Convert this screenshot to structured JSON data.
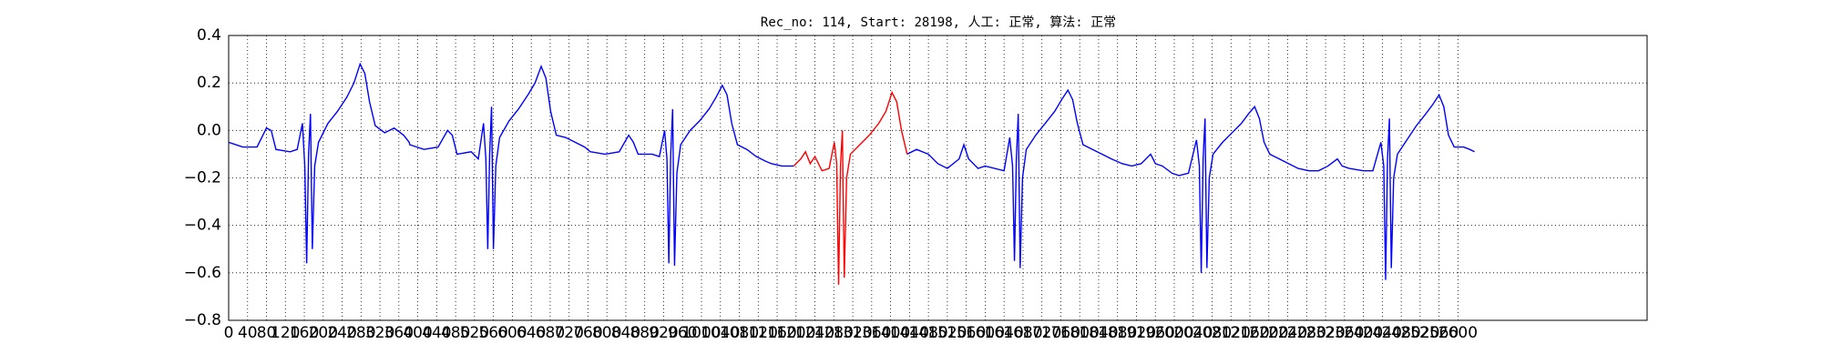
{
  "chart_data": {
    "type": "line",
    "title": "Rec_no: 114, Start: 28198, 人工: 正常, 算法: 正常",
    "xlim": [
      0,
      3000
    ],
    "ylim": [
      -0.8,
      0.4
    ],
    "xticks": [
      0,
      40,
      80,
      120,
      160,
      200,
      240,
      280,
      320,
      360,
      400,
      440,
      480,
      520,
      560,
      600,
      640,
      680,
      720,
      760,
      800,
      840,
      880,
      920,
      960,
      1000,
      1040,
      1080,
      1120,
      1160,
      1200,
      1240,
      1280,
      1320,
      1360,
      1400,
      1440,
      1480,
      1520,
      1560,
      1600,
      1640,
      1680,
      1720,
      1760,
      1800,
      1840,
      1880,
      1920,
      1960,
      2000,
      2040,
      2080,
      2120,
      2160,
      2200,
      2240,
      2280,
      2320,
      2360,
      2400,
      2440,
      2480,
      2520,
      2560,
      2600
    ],
    "yticks": [
      {
        "value": -0.8,
        "label": "−0.8"
      },
      {
        "value": -0.6,
        "label": "−0.6"
      },
      {
        "value": -0.4,
        "label": "−0.4"
      },
      {
        "value": -0.2,
        "label": "−0.2"
      },
      {
        "value": 0,
        "label": "0.0"
      },
      0.2,
      0.4
    ],
    "grid": true,
    "series": [
      {
        "color": "#0000ff",
        "x": [
          0,
          30,
          60,
          80,
          90,
          100,
          130,
          145,
          156,
          161,
          165,
          169,
          173,
          177,
          182,
          190,
          210,
          230,
          250,
          265,
          278,
          288,
          298,
          310,
          330,
          350,
          370,
          382,
          383,
          413,
          443,
          463,
          473,
          483,
          513,
          528,
          539,
          544,
          548,
          552,
          556,
          560,
          565,
          573,
          593,
          613,
          633,
          648,
          661,
          671,
          681,
          693,
          713,
          733,
          753,
          765,
          766,
          796,
          826,
          846,
          856,
          866,
          896,
          911,
          922,
          927,
          931,
          935,
          939,
          943,
          948,
          956,
          976,
          996,
          1016,
          1031,
          1044,
          1054,
          1064,
          1076,
          1096,
          1116,
          1136,
          1148,
          1170,
          1195,
          1315,
          1435,
          1455,
          1480,
          1500,
          1520,
          1545,
          1555,
          1565,
          1585,
          1600,
          1640,
          1652,
          1658,
          1662,
          1666,
          1670,
          1674,
          1679,
          1687,
          1707,
          1727,
          1747,
          1762,
          1775,
          1785,
          1795,
          1807,
          1827,
          1847,
          1867,
          1890,
          1910,
          1930,
          1950,
          1960,
          1975,
          1995,
          2010,
          2030,
          2047,
          2053,
          2057,
          2061,
          2065,
          2069,
          2074,
          2082,
          2102,
          2122,
          2142,
          2157,
          2170,
          2180,
          2190,
          2202,
          2222,
          2242,
          2262,
          2285,
          2305,
          2325,
          2345,
          2355,
          2370,
          2400,
          2420,
          2437,
          2443,
          2447,
          2451,
          2455,
          2459,
          2464,
          2472,
          2492,
          2512,
          2532,
          2547,
          2560,
          2570,
          2580,
          2592,
          2612,
          2625,
          2635
        ],
        "values": [
          -0.05,
          -0.07,
          -0.07,
          0.01,
          0.0,
          -0.08,
          -0.09,
          -0.08,
          0.03,
          -0.15,
          -0.56,
          -0.1,
          0.07,
          -0.5,
          -0.15,
          -0.05,
          0.03,
          0.08,
          0.14,
          0.2,
          0.28,
          0.24,
          0.12,
          0.02,
          -0.01,
          0.01,
          -0.02,
          -0.05,
          -0.06,
          -0.08,
          -0.07,
          0.0,
          -0.02,
          -0.1,
          -0.09,
          -0.12,
          0.03,
          -0.12,
          -0.5,
          -0.1,
          0.1,
          -0.5,
          -0.15,
          -0.03,
          0.04,
          0.09,
          0.15,
          0.2,
          0.27,
          0.22,
          0.08,
          -0.02,
          -0.03,
          -0.05,
          -0.07,
          -0.09,
          -0.09,
          -0.1,
          -0.09,
          -0.02,
          -0.05,
          -0.1,
          -0.1,
          -0.11,
          0.0,
          -0.12,
          -0.56,
          -0.1,
          0.09,
          -0.57,
          -0.18,
          -0.06,
          0.0,
          0.04,
          0.09,
          0.14,
          0.19,
          0.15,
          0.03,
          -0.06,
          -0.08,
          -0.11,
          -0.13,
          -0.14,
          -0.15,
          -0.15,
          null,
          -0.1,
          -0.08,
          -0.1,
          -0.14,
          -0.16,
          -0.12,
          -0.06,
          -0.12,
          -0.16,
          -0.15,
          -0.17,
          -0.03,
          -0.15,
          -0.55,
          -0.12,
          0.07,
          -0.58,
          -0.2,
          -0.08,
          -0.02,
          0.03,
          0.08,
          0.13,
          0.17,
          0.13,
          0.03,
          -0.06,
          -0.08,
          -0.1,
          -0.12,
          -0.14,
          -0.15,
          -0.14,
          -0.1,
          -0.14,
          -0.15,
          -0.18,
          -0.19,
          -0.18,
          -0.04,
          -0.15,
          -0.6,
          -0.12,
          0.05,
          -0.58,
          -0.2,
          -0.1,
          -0.05,
          -0.01,
          0.03,
          0.07,
          0.1,
          0.05,
          -0.05,
          -0.1,
          -0.12,
          -0.14,
          -0.16,
          -0.17,
          -0.17,
          -0.15,
          -0.12,
          -0.15,
          -0.16,
          -0.17,
          -0.17,
          -0.05,
          -0.15,
          -0.63,
          -0.12,
          0.05,
          -0.58,
          -0.2,
          -0.1,
          -0.04,
          0.02,
          0.07,
          0.11,
          0.15,
          0.1,
          -0.02,
          -0.07,
          -0.07,
          -0.08,
          -0.09
        ]
      },
      {
        "color": "#ff0000",
        "x": [
          1195,
          1210,
          1220,
          1230,
          1240,
          1255,
          1270,
          1281,
          1286,
          1290,
          1294,
          1298,
          1302,
          1307,
          1315,
          1335,
          1355,
          1375,
          1390,
          1403,
          1413,
          1423,
          1435
        ],
        "values": [
          -0.15,
          -0.12,
          -0.09,
          -0.14,
          -0.11,
          -0.17,
          -0.16,
          -0.05,
          -0.14,
          -0.65,
          -0.15,
          0.0,
          -0.62,
          -0.2,
          -0.1,
          -0.06,
          -0.02,
          0.03,
          0.08,
          0.16,
          0.12,
          0.0,
          -0.1
        ]
      }
    ]
  }
}
